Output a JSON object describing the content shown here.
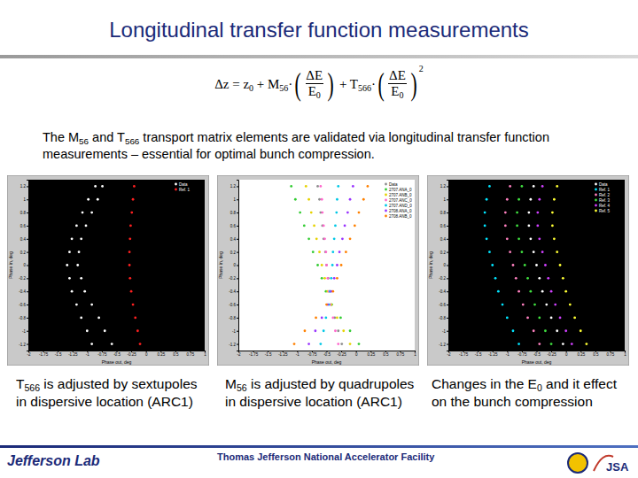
{
  "title": "Longitudinal transfer function measurements",
  "equation": [
    {
      "t": "Δz = z"
    },
    {
      "sub": "0"
    },
    {
      "t": " + M"
    },
    {
      "sub": "56"
    },
    {
      "t": "·"
    },
    {
      "paren": "("
    },
    {
      "num": "ΔE",
      "den": "E",
      "den_sub": "0"
    },
    {
      "paren": ")"
    },
    {
      "t": " + T"
    },
    {
      "sub": "566"
    },
    {
      "t": "·"
    },
    {
      "paren": "("
    },
    {
      "num": "ΔE",
      "den": "E",
      "den_sub": "0"
    },
    {
      "paren": ")"
    },
    {
      "sup": "2"
    }
  ],
  "description": [
    {
      "t": "The M"
    },
    {
      "sub": "56"
    },
    {
      "t": " and T"
    },
    {
      "sub": "566"
    },
    {
      "t": " transport matrix elements are validated via longitudinal transfer function measurements – essential for optimal bunch compression."
    }
  ],
  "chart_data": [
    {
      "type": "scatter",
      "xlabel": "Phase out, deg",
      "ylabel": "Phase in, deg",
      "xlim": [
        -2,
        1
      ],
      "xticks": [
        -2,
        -1.75,
        -1.5,
        -1.25,
        -1,
        -0.75,
        -0.5,
        -0.25,
        0,
        0.25,
        0.5,
        0.75,
        1
      ],
      "ylim": [
        -1.3,
        1.3
      ],
      "yticks": [
        -1.2,
        -1,
        -0.8,
        -0.6,
        -0.4,
        -0.2,
        0,
        0.2,
        0.4,
        0.6,
        0.8,
        1,
        1.2
      ],
      "legend": "top-right",
      "marker": "circle",
      "series": [
        {
          "name": "Data",
          "color": "#ffffff",
          "x": [
            -0.86,
            -0.74,
            -0.98,
            -0.82,
            -1.08,
            -0.92,
            -1.18,
            -1.02,
            -1.26,
            -1.1,
            -1.3,
            -1.14,
            -1.34,
            -1.16,
            -1.3,
            -1.1,
            -1.26,
            -1.04,
            -1.18,
            -0.92,
            -1.1,
            -0.8,
            -1.0,
            -0.7,
            -0.92,
            -0.58
          ],
          "values": [
            1.2,
            1.2,
            1.0,
            1.0,
            0.8,
            0.8,
            0.6,
            0.6,
            0.4,
            0.4,
            0.2,
            0.2,
            0,
            0,
            -0.2,
            -0.2,
            -0.4,
            -0.4,
            -0.6,
            -0.6,
            -0.8,
            -0.8,
            -1.0,
            -1.0,
            -1.2,
            -1.2
          ]
        },
        {
          "name": "Ref. 1",
          "color": "#ff2020",
          "x": [
            -0.2,
            -0.22,
            -0.24,
            -0.26,
            -0.27,
            -0.28,
            -0.28,
            -0.27,
            -0.25,
            -0.22,
            -0.18,
            -0.14,
            -0.1
          ],
          "values": [
            1.2,
            1.0,
            0.8,
            0.6,
            0.4,
            0.2,
            0,
            -0.2,
            -0.4,
            -0.6,
            -0.8,
            -1.0,
            -1.2
          ]
        }
      ]
    },
    {
      "type": "scatter",
      "xlabel": "Phase out, deg",
      "ylabel": "Phase in, deg",
      "xlim": [
        -2,
        1
      ],
      "xticks": [
        -2,
        -1.75,
        -1.5,
        -1.25,
        -1,
        -0.75,
        -0.5,
        -0.25,
        0,
        0.25,
        0.5,
        0.75,
        1
      ],
      "ylim": [
        -1.3,
        1.3
      ],
      "yticks": [
        -1.2,
        -1,
        -0.8,
        -0.6,
        -0.4,
        -0.2,
        0,
        0.2,
        0.4,
        0.6,
        0.8,
        1,
        1.2
      ],
      "legend": "top-right",
      "marker": "circle",
      "series": [
        {
          "name": "Data",
          "color": "#8c8c8c",
          "x": [
            -0.65,
            -0.62,
            -0.6,
            -0.57,
            -0.55,
            -0.52,
            -0.5,
            -0.47,
            -0.45,
            -0.42,
            -0.36,
            -0.3,
            -0.24
          ],
          "values": [
            1.2,
            1.0,
            0.8,
            0.6,
            0.4,
            0.2,
            0,
            -0.2,
            -0.4,
            -0.6,
            -0.8,
            -1.0,
            -1.2
          ]
        },
        {
          "name": "2707.ANA_0",
          "color": "#33cc33",
          "x": [
            -1.1,
            -1.03,
            -0.95,
            -0.88,
            -0.8,
            -0.73,
            -0.65,
            -0.58,
            -0.51,
            -0.41,
            -0.26,
            -0.1,
            0.05
          ],
          "values": [
            1.2,
            1.0,
            0.8,
            0.6,
            0.4,
            0.2,
            0,
            -0.2,
            -0.4,
            -0.6,
            -0.8,
            -1.0,
            -1.2
          ]
        },
        {
          "name": "2707.ANB_0",
          "color": "#e6d200",
          "x": [
            -0.85,
            -0.8,
            -0.76,
            -0.71,
            -0.67,
            -0.62,
            -0.58,
            -0.53,
            -0.48,
            -0.42,
            -0.32,
            -0.21,
            -0.1
          ],
          "values": [
            1.2,
            1.0,
            0.8,
            0.6,
            0.4,
            0.2,
            0,
            -0.2,
            -0.4,
            -0.6,
            -0.8,
            -1.0,
            -1.2
          ]
        },
        {
          "name": "2707.ANC_0",
          "color": "#ff66cc",
          "x": [
            -0.6,
            -0.58,
            -0.57,
            -0.55,
            -0.53,
            -0.51,
            -0.5,
            -0.48,
            -0.46,
            -0.44,
            -0.39,
            -0.35,
            -0.3
          ],
          "values": [
            1.2,
            1.0,
            0.8,
            0.6,
            0.4,
            0.2,
            0,
            -0.2,
            -0.4,
            -0.6,
            -0.8,
            -1.0,
            -1.2
          ]
        },
        {
          "name": "2707.AND_0",
          "color": "#00c8e6",
          "x": [
            -0.3,
            -0.32,
            -0.33,
            -0.35,
            -0.37,
            -0.39,
            -0.4,
            -0.42,
            -0.44,
            -0.46,
            -0.51,
            -0.55,
            -0.6
          ],
          "values": [
            1.2,
            1.0,
            0.8,
            0.6,
            0.4,
            0.2,
            0,
            -0.2,
            -0.4,
            -0.6,
            -0.8,
            -1.0,
            -1.2
          ]
        },
        {
          "name": "2708.ANA_0",
          "color": "#9933ff",
          "x": [
            -0.05,
            -0.1,
            -0.14,
            -0.19,
            -0.23,
            -0.28,
            -0.32,
            -0.37,
            -0.42,
            -0.48,
            -0.58,
            -0.69,
            -0.8
          ],
          "values": [
            1.2,
            1.0,
            0.8,
            0.6,
            0.4,
            0.2,
            0,
            -0.2,
            -0.4,
            -0.6,
            -0.8,
            -1.0,
            -1.2
          ]
        },
        {
          "name": "2708.ANB_0",
          "color": "#ff8000",
          "x": [
            0.2,
            0.13,
            0.05,
            -0.02,
            -0.1,
            -0.17,
            -0.25,
            -0.32,
            -0.39,
            -0.5,
            -0.68,
            -0.87,
            -1.05
          ],
          "values": [
            1.2,
            1.0,
            0.8,
            0.6,
            0.4,
            0.2,
            0,
            -0.2,
            -0.4,
            -0.6,
            -0.8,
            -1.0,
            -1.2
          ]
        }
      ]
    },
    {
      "type": "scatter",
      "xlabel": "Phase out, deg",
      "ylabel": "Phase in, deg",
      "xlim": [
        -2,
        1
      ],
      "xticks": [
        -2,
        -1.75,
        -1.5,
        -1.25,
        -1,
        -0.75,
        -0.5,
        -0.25,
        0,
        0.25,
        0.5,
        0.75,
        1
      ],
      "ylim": [
        -1.3,
        1.3
      ],
      "yticks": [
        -1.2,
        -1,
        -0.8,
        -0.6,
        -0.4,
        -0.2,
        0,
        0.2,
        0.4,
        0.6,
        0.8,
        1,
        1.2
      ],
      "legend": "top-right",
      "marker": "circle",
      "series": [
        {
          "name": "Data",
          "color": "#ffffff",
          "x": [
            -0.55,
            -0.6,
            -0.63,
            -0.63,
            -0.6,
            -0.55,
            -0.5,
            -0.45,
            -0.4,
            -0.33,
            -0.25,
            -0.15,
            -0.05
          ],
          "values": [
            1.2,
            1.0,
            0.8,
            0.6,
            0.4,
            0.2,
            0,
            -0.2,
            -0.4,
            -0.6,
            -0.8,
            -1.0,
            -1.2
          ]
        },
        {
          "name": "Ref. 1",
          "color": "#00e5ff",
          "x": [
            -1.3,
            -1.35,
            -1.38,
            -1.38,
            -1.35,
            -1.3,
            -1.25,
            -1.2,
            -1.15,
            -1.08,
            -1.0,
            -0.9,
            -0.8
          ],
          "values": [
            1.2,
            1.0,
            0.8,
            0.6,
            0.4,
            0.2,
            0,
            -0.2,
            -0.4,
            -0.6,
            -0.8,
            -1.0,
            -1.2
          ]
        },
        {
          "name": "Ref. 2",
          "color": "#ff80c0",
          "x": [
            -0.95,
            -1.0,
            -1.03,
            -1.03,
            -1.0,
            -0.95,
            -0.9,
            -0.85,
            -0.8,
            -0.73,
            -0.65,
            -0.55,
            -0.45
          ],
          "values": [
            1.2,
            1.0,
            0.8,
            0.6,
            0.4,
            0.2,
            0,
            -0.2,
            -0.4,
            -0.6,
            -0.8,
            -1.0,
            -1.2
          ]
        },
        {
          "name": "Ref. 3",
          "color": "#40e040",
          "x": [
            -0.75,
            -0.8,
            -0.83,
            -0.83,
            -0.8,
            -0.75,
            -0.7,
            -0.65,
            -0.6,
            -0.53,
            -0.45,
            -0.35,
            -0.25
          ],
          "values": [
            1.2,
            1.0,
            0.8,
            0.6,
            0.4,
            0.2,
            0,
            -0.2,
            -0.4,
            -0.6,
            -0.8,
            -1.0,
            -1.2
          ]
        },
        {
          "name": "Ref. 4",
          "color": "#d040ff",
          "x": [
            -0.4,
            -0.45,
            -0.48,
            -0.48,
            -0.45,
            -0.4,
            -0.35,
            -0.3,
            -0.25,
            -0.18,
            -0.1,
            0,
            0.1
          ],
          "values": [
            1.2,
            1.0,
            0.8,
            0.6,
            0.4,
            0.2,
            0,
            -0.2,
            -0.4,
            -0.6,
            -0.8,
            -1.0,
            -1.2
          ]
        },
        {
          "name": "Ref. 5",
          "color": "#ffff33",
          "x": [
            -0.15,
            -0.2,
            -0.23,
            -0.23,
            -0.2,
            -0.15,
            -0.1,
            -0.05,
            0,
            0.07,
            0.15,
            0.25,
            0.35
          ],
          "values": [
            1.2,
            1.0,
            0.8,
            0.6,
            0.4,
            0.2,
            0,
            -0.2,
            -0.4,
            -0.6,
            -0.8,
            -1.0,
            -1.2
          ]
        }
      ]
    }
  ],
  "captions": [
    [
      {
        "t": "T"
      },
      {
        "sub": "566"
      },
      {
        "t": " is adjusted by sextupoles in dispersive location (ARC1)"
      }
    ],
    [
      {
        "t": "M"
      },
      {
        "sub": "56"
      },
      {
        "t": " is adjusted by quadrupoles in dispersive location (ARC1)"
      }
    ],
    [
      {
        "t": "Changes in the E"
      },
      {
        "sub": "0"
      },
      {
        "t": " and it effect on the bunch compression"
      }
    ]
  ],
  "footer": {
    "left": "Jefferson Lab",
    "center": "Thomas Jefferson National Accelerator Facility",
    "right": "JSA"
  }
}
